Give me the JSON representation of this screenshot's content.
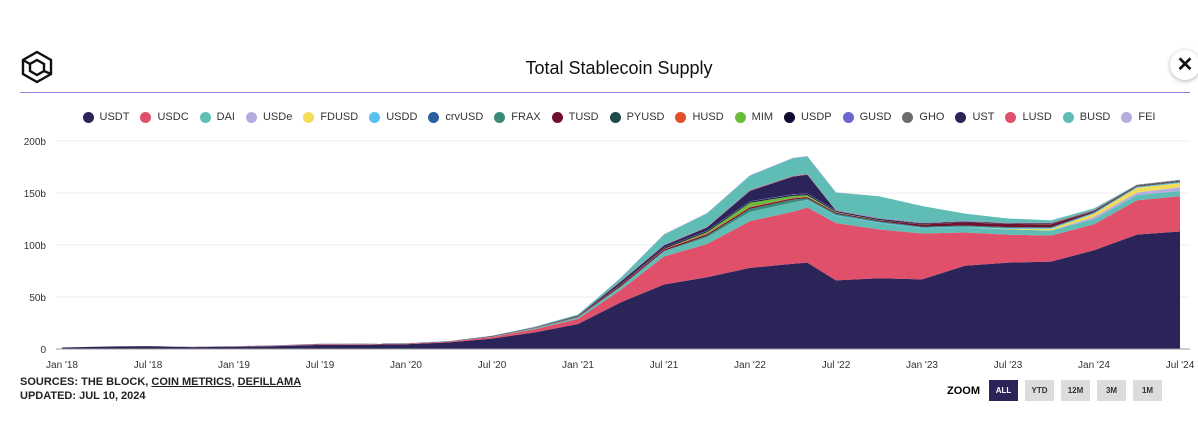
{
  "header": {
    "title": "Total Stablecoin Supply",
    "close_label": "✕"
  },
  "footer": {
    "sources_prefix": "SOURCES: THE BLOCK, ",
    "source_links": [
      "COIN METRICS",
      "DEFILLAMA"
    ],
    "separator": ", ",
    "updated": "UPDATED: JUL 10, 2024"
  },
  "zoom": {
    "label": "ZOOM",
    "options": [
      "ALL",
      "YTD",
      "12M",
      "3M",
      "1M"
    ],
    "selected": "ALL"
  },
  "chart_data": {
    "type": "area",
    "stacked": true,
    "title": "Total Stablecoin Supply",
    "legend_position": "top",
    "grid": true,
    "ylim": [
      0,
      200
    ],
    "y_ticks": [
      "0",
      "50b",
      "100b",
      "150b",
      "200b"
    ],
    "y_tick_values": [
      0,
      50,
      100,
      150,
      200
    ],
    "x_ticks": [
      "Jan '18",
      "Jul '18",
      "Jan '19",
      "Jul '19",
      "Jan '20",
      "Jul '20",
      "Jan '21",
      "Jul '21",
      "Jan '22",
      "Jul '22",
      "Jan '23",
      "Jul '23",
      "Jan '24",
      "Jul '24"
    ],
    "x_tick_dates": [
      "2018-01",
      "2018-07",
      "2019-01",
      "2019-07",
      "2020-01",
      "2020-07",
      "2021-01",
      "2021-07",
      "2022-01",
      "2022-07",
      "2023-01",
      "2023-07",
      "2024-01",
      "2024-07"
    ],
    "x": [
      "2018-01",
      "2018-04",
      "2018-07",
      "2018-10",
      "2019-01",
      "2019-04",
      "2019-07",
      "2019-10",
      "2020-01",
      "2020-04",
      "2020-07",
      "2020-10",
      "2021-01",
      "2021-04",
      "2021-07",
      "2021-10",
      "2022-01",
      "2022-04",
      "2022-05",
      "2022-07",
      "2022-10",
      "2023-01",
      "2023-04",
      "2023-07",
      "2023-10",
      "2024-01",
      "2024-04",
      "2024-07"
    ],
    "series": [
      {
        "name": "USDT",
        "color": "#2a2459",
        "values": [
          1.4,
          2.3,
          2.7,
          1.8,
          2.0,
          2.8,
          4.0,
          4.1,
          4.6,
          6.4,
          10,
          16,
          24,
          45,
          62,
          69,
          78,
          82,
          83,
          66,
          68,
          67,
          80,
          83,
          84,
          95,
          110,
          113
        ]
      },
      {
        "name": "USDC",
        "color": "#e0506a",
        "values": [
          0,
          0,
          0,
          0.1,
          0.25,
          0.3,
          0.5,
          0.5,
          0.5,
          0.7,
          1.5,
          3,
          5,
          12,
          27,
          32,
          45,
          50,
          53,
          55,
          47,
          44,
          32,
          27,
          25,
          25,
          33,
          34
        ]
      },
      {
        "name": "DAI",
        "color": "#5fbdb5",
        "values": [
          0,
          0,
          0,
          0,
          0.1,
          0.1,
          0.1,
          0.1,
          0.1,
          0.1,
          0.4,
          0.9,
          1.5,
          3,
          5,
          6.5,
          9,
          9,
          7,
          7,
          6,
          5,
          5,
          5,
          5,
          5,
          5,
          5
        ]
      },
      {
        "name": "USDe",
        "color": "#b6acdf",
        "values": [
          0,
          0,
          0,
          0,
          0,
          0,
          0,
          0,
          0,
          0,
          0,
          0,
          0,
          0,
          0,
          0,
          0,
          0,
          0,
          0,
          0,
          0,
          0,
          0,
          0,
          2,
          2.5,
          3.5
        ]
      },
      {
        "name": "FDUSD",
        "color": "#f2dc5a",
        "values": [
          0,
          0,
          0,
          0,
          0,
          0,
          0,
          0,
          0,
          0,
          0,
          0,
          0,
          0,
          0,
          0,
          0,
          0,
          0,
          0,
          0,
          0,
          0,
          0.5,
          1.5,
          3,
          4.5,
          4
        ]
      },
      {
        "name": "USDD",
        "color": "#57c0ee",
        "values": [
          0,
          0,
          0,
          0,
          0,
          0,
          0,
          0,
          0,
          0,
          0,
          0,
          0,
          0,
          0,
          0,
          0,
          0,
          0.5,
          0.7,
          0.7,
          0.7,
          0.7,
          0.7,
          0.7,
          0.7,
          0.7,
          0.7
        ]
      },
      {
        "name": "crvUSD",
        "color": "#2a5fa0",
        "values": [
          0,
          0,
          0,
          0,
          0,
          0,
          0,
          0,
          0,
          0,
          0,
          0,
          0,
          0,
          0,
          0,
          0,
          0,
          0,
          0,
          0,
          0,
          0,
          0.1,
          0.1,
          0.1,
          0.1,
          0.1
        ]
      },
      {
        "name": "FRAX",
        "color": "#3a8a78",
        "values": [
          0,
          0,
          0,
          0,
          0,
          0,
          0,
          0,
          0,
          0,
          0,
          0,
          0.1,
          0.2,
          0.3,
          1.5,
          2.7,
          2.8,
          1.5,
          1.3,
          1.1,
          1,
          1,
          0.9,
          0.8,
          0.7,
          0.6,
          0.6
        ]
      },
      {
        "name": "TUSD",
        "color": "#6f1030",
        "values": [
          0,
          0.1,
          0.1,
          0.2,
          0.2,
          0.2,
          0.2,
          0.2,
          0.1,
          0.1,
          0.3,
          0.3,
          0.5,
          1.3,
          1.4,
          1.3,
          1.4,
          1,
          1,
          1,
          1,
          2,
          3,
          3,
          2.8,
          1,
          0.5,
          0.5
        ]
      },
      {
        "name": "PYUSD",
        "color": "#1e4a4a",
        "values": [
          0,
          0,
          0,
          0,
          0,
          0,
          0,
          0,
          0,
          0,
          0,
          0,
          0,
          0,
          0,
          0,
          0,
          0,
          0,
          0,
          0,
          0,
          0,
          0,
          0.1,
          0.3,
          0.4,
          0.5
        ]
      },
      {
        "name": "HUSD",
        "color": "#e0502a",
        "values": [
          0,
          0,
          0,
          0,
          0,
          0,
          0,
          0,
          0,
          0,
          0.1,
          0.2,
          0.3,
          0.5,
          0.5,
          0.6,
          0.6,
          0.5,
          0.5,
          0.2,
          0,
          0,
          0,
          0,
          0,
          0,
          0,
          0
        ]
      },
      {
        "name": "MIM",
        "color": "#6bbb3a",
        "values": [
          0,
          0,
          0,
          0,
          0,
          0,
          0,
          0,
          0,
          0,
          0,
          0,
          0,
          0,
          0.1,
          1.5,
          4,
          2,
          1.5,
          0.5,
          0.3,
          0.2,
          0.2,
          0.2,
          0.2,
          0.1,
          0.1,
          0.1
        ]
      },
      {
        "name": "USDP",
        "color": "#0e0a30",
        "values": [
          0,
          0,
          0,
          0,
          0.1,
          0.1,
          0.1,
          0.1,
          0.1,
          0.1,
          0.2,
          0.3,
          0.5,
          0.7,
          0.9,
          1,
          1,
          1,
          1,
          0.9,
          0.9,
          0.8,
          0.6,
          0.5,
          0.5,
          0.4,
          0.3,
          0.3
        ]
      },
      {
        "name": "GUSD",
        "color": "#6a66d0",
        "values": [
          0,
          0,
          0,
          0.1,
          0.1,
          0.1,
          0.1,
          0.1,
          0.1,
          0.1,
          0.1,
          0.1,
          0.1,
          0.2,
          0.3,
          0.4,
          0.4,
          0.5,
          0.5,
          0.5,
          0.6,
          0.5,
          0.4,
          0.3,
          0.2,
          0.2,
          0.1,
          0.1
        ]
      },
      {
        "name": "GHO",
        "color": "#6b6b6b",
        "values": [
          0,
          0,
          0,
          0,
          0,
          0,
          0,
          0,
          0,
          0,
          0,
          0,
          0,
          0,
          0,
          0,
          0,
          0,
          0,
          0,
          0,
          0,
          0,
          0.03,
          0.03,
          0.05,
          0.08,
          0.1
        ]
      },
      {
        "name": "UST",
        "color": "#2a2459",
        "values": [
          0,
          0,
          0,
          0,
          0,
          0,
          0,
          0,
          0,
          0,
          0,
          0.1,
          0.2,
          2,
          2,
          3,
          10,
          17,
          18,
          0,
          0,
          0,
          0,
          0,
          0,
          0,
          0,
          0
        ]
      },
      {
        "name": "LUSD",
        "color": "#e0506a",
        "values": [
          0,
          0,
          0,
          0,
          0,
          0,
          0,
          0,
          0,
          0,
          0,
          0,
          0,
          0.5,
          0.5,
          0.5,
          0.6,
          0.6,
          0.6,
          0.3,
          0.3,
          0.3,
          0.3,
          0.3,
          0.3,
          0.2,
          0.1,
          0.1
        ]
      },
      {
        "name": "BUSD",
        "color": "#5fbdb5",
        "values": [
          0,
          0,
          0,
          0,
          0,
          0,
          0,
          0.1,
          0.2,
          0.2,
          0.2,
          0.6,
          1,
          3,
          10,
          13,
          14,
          17,
          17,
          17,
          21,
          16,
          7,
          4,
          2.5,
          1.5,
          0.1,
          0.1
        ]
      },
      {
        "name": "FEI",
        "color": "#b6acdf",
        "values": [
          0,
          0,
          0,
          0,
          0,
          0,
          0,
          0,
          0,
          0,
          0,
          0,
          0,
          0.5,
          0.5,
          0.5,
          0.5,
          0.5,
          0.5,
          0.3,
          0,
          0,
          0,
          0,
          0,
          0,
          0,
          0
        ]
      }
    ]
  }
}
